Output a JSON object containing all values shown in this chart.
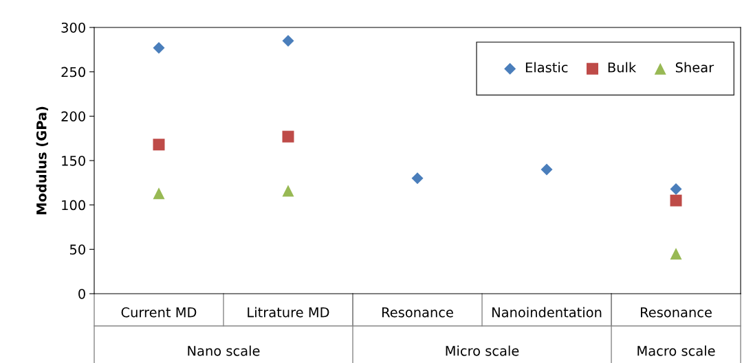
{
  "chart_data": {
    "type": "scatter",
    "ylabel": "Modulus (GPa)",
    "categories": [
      "Current MD",
      "Litrature MD",
      "Resonance",
      "Nanoindentation",
      "Resonance"
    ],
    "series": [
      {
        "name": "Elastic",
        "color": "#4a7ebb",
        "marker": "diamond",
        "values": [
          277,
          285,
          130,
          140,
          118
        ]
      },
      {
        "name": "Bulk",
        "color": "#be4b48",
        "marker": "square",
        "values": [
          168,
          177,
          null,
          null,
          105
        ]
      },
      {
        "name": "Shear",
        "color": "#98b954",
        "marker": "triangle",
        "values": [
          113,
          116,
          null,
          null,
          45
        ]
      }
    ],
    "ylim": [
      0,
      300
    ],
    "yticks": [
      0,
      50,
      100,
      150,
      200,
      250,
      300
    ],
    "annotations": [
      "Nano scale",
      "Micro scale",
      "Macro scale"
    ],
    "grid": false,
    "legend": "top right"
  }
}
